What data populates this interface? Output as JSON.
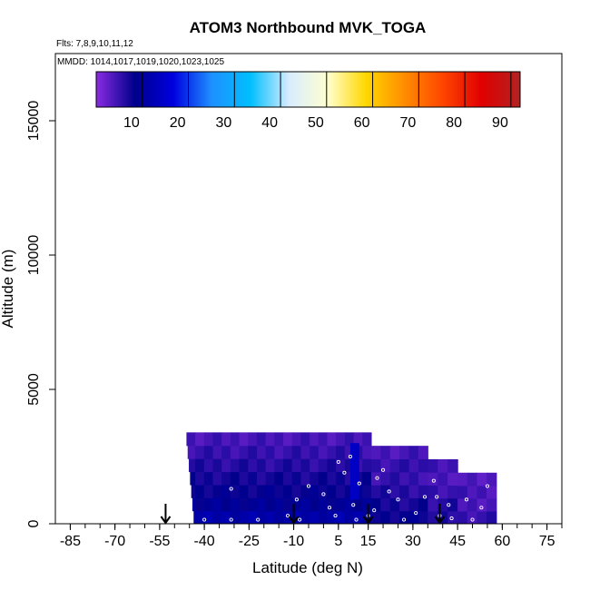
{
  "chart_data": {
    "type": "heatmap",
    "title": "ATOM3 Northbound MVK_TOGA",
    "flights_label": "Flts: 7,8,9,10,11,12",
    "dates_label": "MMDD: 1014,1017,1019,1020,1023,1025",
    "xlabel": "Latitude (deg N)",
    "ylabel": "Altitude (m)",
    "xlim": [
      -90,
      80
    ],
    "ylim": [
      0,
      17500
    ],
    "x_ticks": [
      -85,
      -70,
      -55,
      -40,
      -25,
      -10,
      5,
      15,
      30,
      45,
      60,
      75
    ],
    "x_minor_step": 5,
    "y_ticks": [
      0,
      5000,
      10000,
      15000
    ],
    "colorbar": {
      "range": [
        0,
        92
      ],
      "ticks": [
        10,
        20,
        30,
        40,
        50,
        60,
        70,
        80,
        90
      ],
      "stops": [
        "#8a2be2",
        "#00008b",
        "#0000e0",
        "#1e90ff",
        "#00bfff",
        "#d8ecff",
        "#ffffd0",
        "#ffd700",
        "#ff8c00",
        "#ff4500",
        "#e00000",
        "#b22222"
      ]
    },
    "curtain_segments": [
      {
        "lat_min": -46,
        "lat_max": 16,
        "alt_top": 3400,
        "values_by_layer": [
          3,
          4,
          5,
          6,
          7,
          8,
          10
        ]
      },
      {
        "lat_min": 16,
        "lat_max": 35,
        "alt_top": 2900,
        "values_by_layer": [
          3,
          4,
          4,
          5,
          6,
          7
        ]
      },
      {
        "lat_min": 35,
        "lat_max": 45,
        "alt_top": 2400,
        "values_by_layer": [
          3,
          3,
          4,
          5,
          5
        ]
      },
      {
        "lat_min": 45,
        "lat_max": 58,
        "alt_top": 1900,
        "values_by_layer": [
          2,
          3,
          3,
          4
        ]
      }
    ],
    "high_values_band": {
      "lat_min": 9,
      "lat_max": 12,
      "alt_min": 900,
      "alt_max": 3000,
      "value": 14
    },
    "sample_points": [
      {
        "lat": -40,
        "alt": 150
      },
      {
        "lat": -31,
        "alt": 150
      },
      {
        "lat": -22,
        "alt": 150
      },
      {
        "lat": -12,
        "alt": 300
      },
      {
        "lat": -9,
        "alt": 900
      },
      {
        "lat": -8,
        "alt": 150
      },
      {
        "lat": -5,
        "alt": 1400
      },
      {
        "lat": 0,
        "alt": 1100
      },
      {
        "lat": 2,
        "alt": 600
      },
      {
        "lat": 4,
        "alt": 300
      },
      {
        "lat": 5,
        "alt": 2300
      },
      {
        "lat": 7,
        "alt": 1900
      },
      {
        "lat": 9,
        "alt": 2500
      },
      {
        "lat": 10,
        "alt": 700
      },
      {
        "lat": 11,
        "alt": 150
      },
      {
        "lat": 12,
        "alt": 1500
      },
      {
        "lat": 15,
        "alt": 300
      },
      {
        "lat": 17,
        "alt": 500
      },
      {
        "lat": 18,
        "alt": 1700
      },
      {
        "lat": 20,
        "alt": 2000
      },
      {
        "lat": 22,
        "alt": 1200
      },
      {
        "lat": 25,
        "alt": 900
      },
      {
        "lat": 27,
        "alt": 150
      },
      {
        "lat": 31,
        "alt": 400
      },
      {
        "lat": 34,
        "alt": 1000
      },
      {
        "lat": 37,
        "alt": 1600
      },
      {
        "lat": 38,
        "alt": 1000
      },
      {
        "lat": 39,
        "alt": 300
      },
      {
        "lat": 42,
        "alt": 700
      },
      {
        "lat": 43,
        "alt": 200
      },
      {
        "lat": 48,
        "alt": 900
      },
      {
        "lat": 50,
        "alt": 150
      },
      {
        "lat": 53,
        "alt": 600
      },
      {
        "lat": 55,
        "alt": 1400
      },
      {
        "lat": -31,
        "alt": 1300
      }
    ],
    "profile_markers_lat": [
      -53,
      -10,
      15,
      39
    ]
  }
}
